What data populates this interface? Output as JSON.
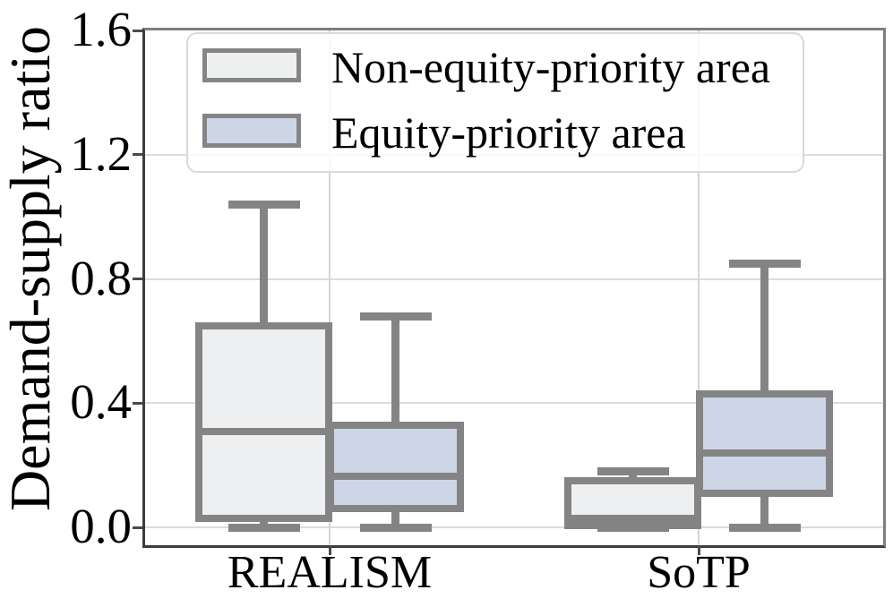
{
  "chart_data": {
    "type": "boxplot",
    "title": "",
    "xlabel": "",
    "ylabel": "Demand-supply ratio",
    "categories": [
      "REALISM",
      "SoTP"
    ],
    "ylim": [
      -0.057,
      1.6
    ],
    "yticks": [
      0.0,
      0.4,
      0.8,
      1.2,
      1.6
    ],
    "ytick_labels": [
      "0.0",
      "0.4",
      "0.8",
      "1.2",
      "1.6"
    ],
    "grid": true,
    "legend_position": "upper left",
    "series": [
      {
        "name": "Non-equity-priority area",
        "fill_color": "#edeff1",
        "boxes": [
          {
            "category": "REALISM",
            "whislo": 0.0,
            "q1": 0.03,
            "med": 0.31,
            "q3": 0.65,
            "whishi": 1.04
          },
          {
            "category": "SoTP",
            "whislo": 0.0,
            "q1": 0.005,
            "med": 0.03,
            "q3": 0.15,
            "whishi": 0.18
          }
        ]
      },
      {
        "name": "Equity-priority area",
        "fill_color": "#ccd6e7",
        "boxes": [
          {
            "category": "REALISM",
            "whislo": 0.0,
            "q1": 0.06,
            "med": 0.165,
            "q3": 0.33,
            "whishi": 0.68
          },
          {
            "category": "SoTP",
            "whislo": 0.0,
            "q1": 0.11,
            "med": 0.24,
            "q3": 0.43,
            "whishi": 0.85
          }
        ]
      }
    ],
    "colors": {
      "box_border": "#848484",
      "whisker": "#848484",
      "grid": "#dcdcdc",
      "non_equity_fill": "#edeff1",
      "equity_fill": "#ccd6e7"
    }
  }
}
